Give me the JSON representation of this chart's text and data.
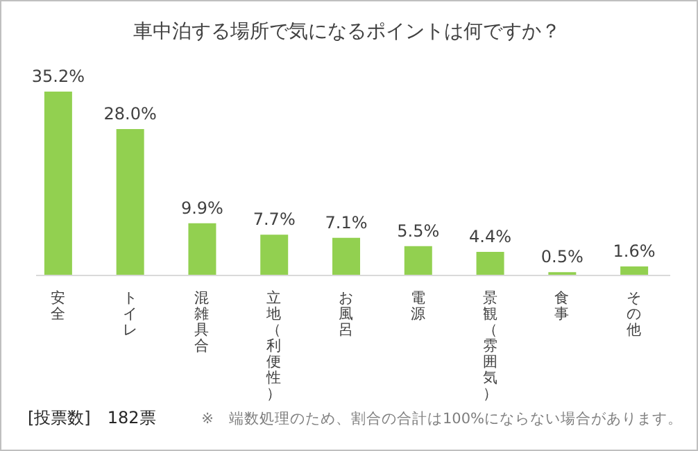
{
  "chart_data": {
    "type": "bar",
    "title": "車中泊する場所で気になるポイントは何ですか？",
    "categories": [
      "安全",
      "トイレ",
      "混雑具合",
      "立地（利便性）",
      "お風呂",
      "電源",
      "景観（雰囲気）",
      "食事",
      "その他"
    ],
    "values": [
      35.2,
      28.0,
      9.9,
      7.7,
      7.1,
      5.5,
      4.4,
      0.5,
      1.6
    ],
    "value_labels": [
      "35.2%",
      "28.0%",
      "9.9%",
      "7.7%",
      "7.1%",
      "5.5%",
      "4.4%",
      "0.5%",
      "1.6%"
    ],
    "color": "#92d050",
    "annotations": [
      "[投票数]　182票",
      "※　端数処理のため、割合の合計は100%にならない場合があります。"
    ]
  }
}
